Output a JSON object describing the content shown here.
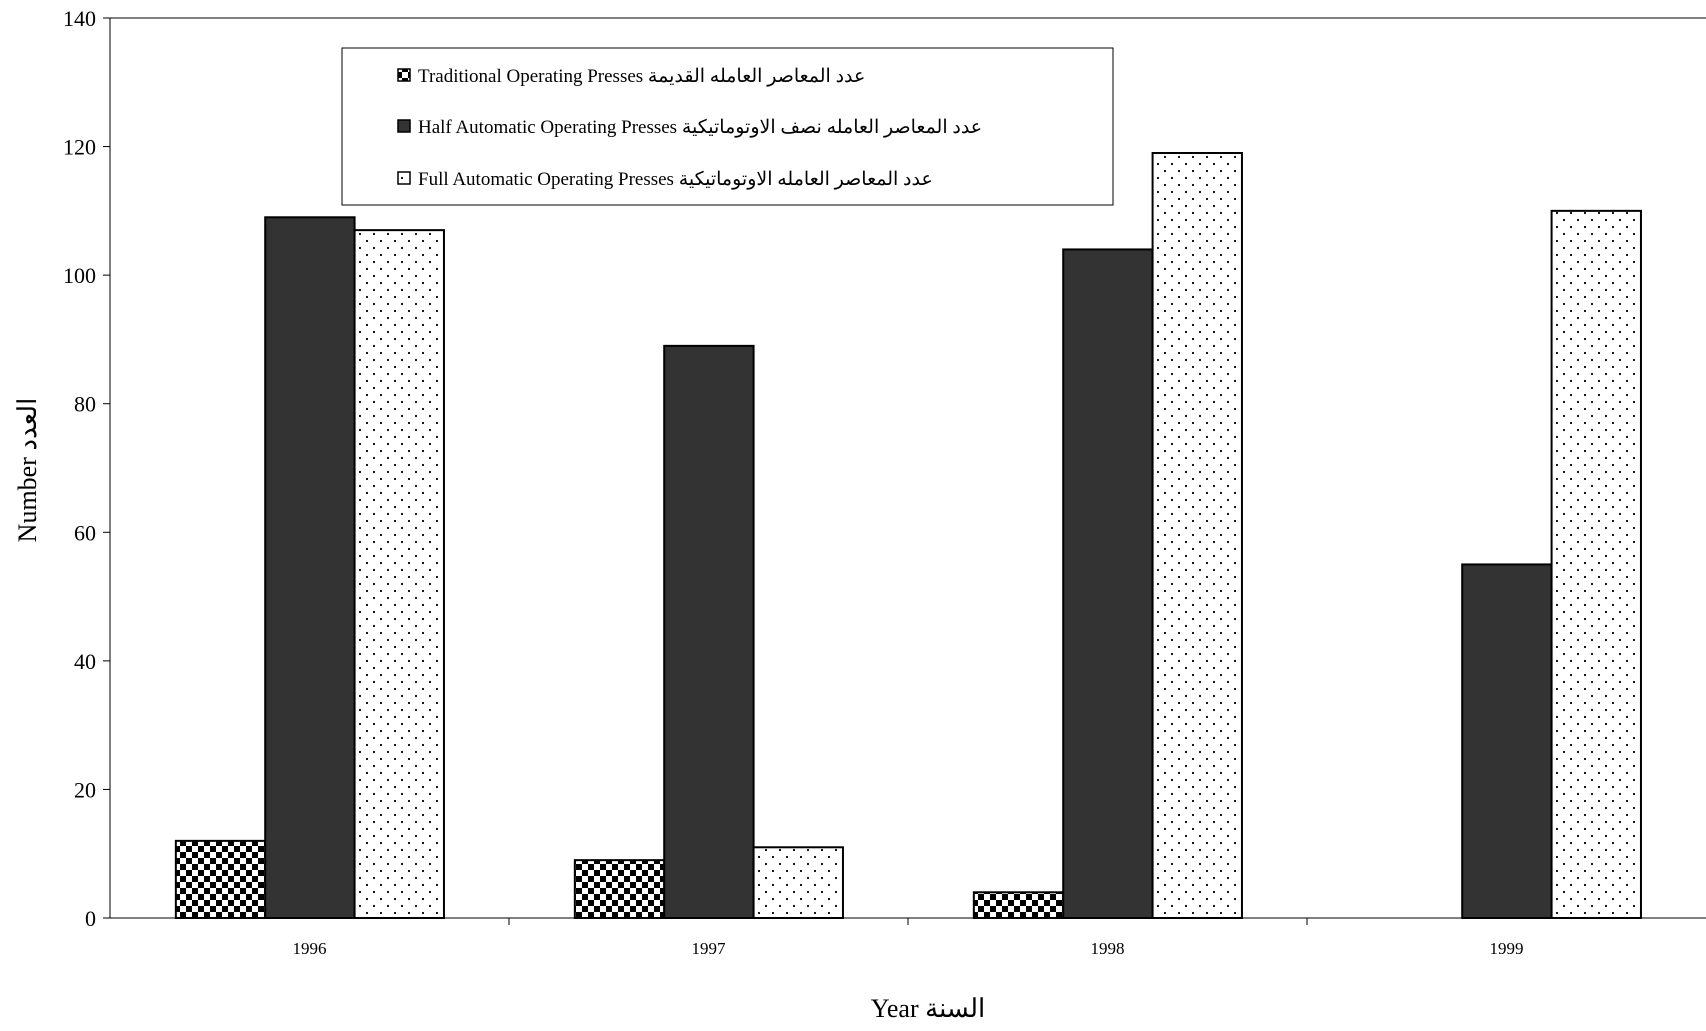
{
  "chart_data": {
    "type": "bar",
    "title": "",
    "xlabel": "Year السنة",
    "ylabel": "Number العدد",
    "ylim": [
      0,
      140
    ],
    "yticks": [
      0,
      20,
      40,
      60,
      80,
      100,
      120,
      140
    ],
    "grid": false,
    "legend_position": "top-left",
    "categories": [
      "1996",
      "1997",
      "1998",
      "1999"
    ],
    "series": [
      {
        "name": "Traditional Operating Presses عدد المعاصر العامله القديمة",
        "pattern": "checkerboard",
        "values": [
          12,
          9,
          4,
          0
        ]
      },
      {
        "name": "Half Automatic Operating Presses عدد المعاصر العامله نصف الاوتوماتيكية",
        "pattern": "solid-dark",
        "color": "#333333",
        "values": [
          109,
          89,
          104,
          55
        ]
      },
      {
        "name": "Full Automatic Operating Presses عدد المعاصر العامله الاوتوماتيكية",
        "pattern": "dotted",
        "values": [
          107,
          11,
          119,
          110
        ]
      }
    ]
  }
}
